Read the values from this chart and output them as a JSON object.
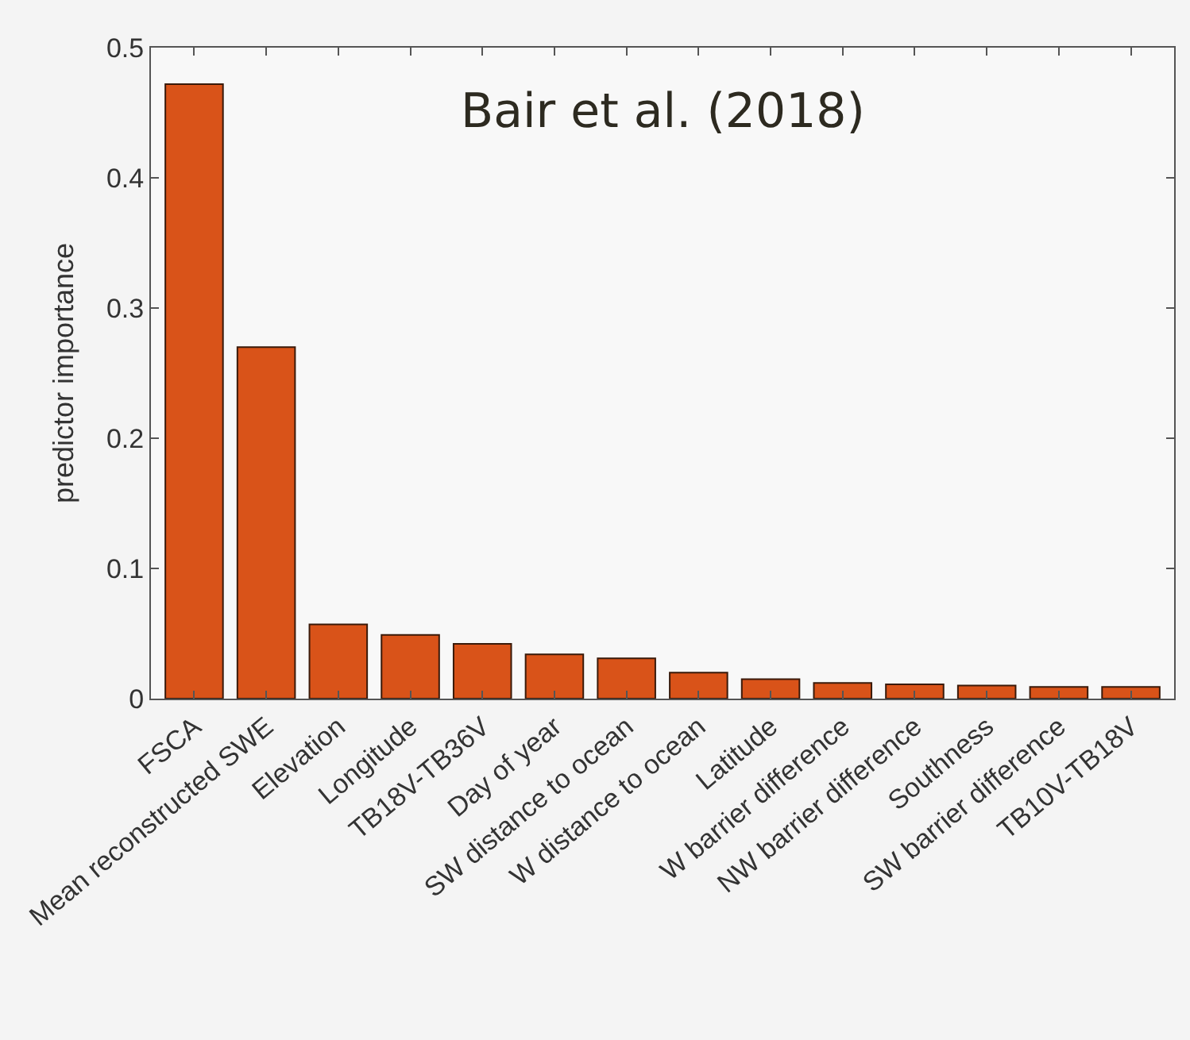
{
  "chart_data": {
    "type": "bar",
    "ylabel": "predictor importance",
    "categories": [
      "FSCA",
      "Mean reconstructed SWE",
      "Elevation",
      "Longitude",
      "TB18V-TB36V",
      "Day of year",
      "SW distance to ocean",
      "W distance to ocean",
      "Latitude",
      "W barrier difference",
      "NW barrier difference",
      "Southness",
      "SW barrier difference",
      "TB10V-TB18V"
    ],
    "values": [
      0.472,
      0.27,
      0.057,
      0.049,
      0.042,
      0.034,
      0.031,
      0.02,
      0.015,
      0.012,
      0.011,
      0.01,
      0.009,
      0.009
    ],
    "color": "#d95319",
    "ylim": [
      0,
      0.5
    ],
    "yticks": [
      0,
      0.1,
      0.2,
      0.3,
      0.4,
      0.5
    ],
    "annotations": [
      "Bair et al. (2018)"
    ],
    "grid": false,
    "legend": false
  }
}
